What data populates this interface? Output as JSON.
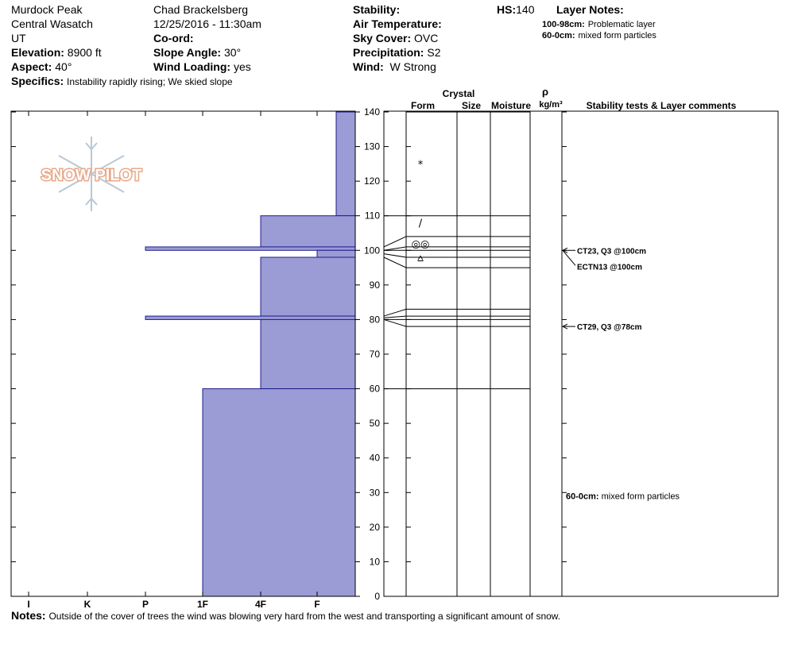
{
  "header": {
    "location": "Murdock Peak",
    "range": "Central Wasatch",
    "state": "UT",
    "elevation_label": "Elevation:",
    "elevation": "8900 ft",
    "aspect_label": "Aspect:",
    "aspect": "40°",
    "specifics_label": "Specifics:",
    "specifics": "Instability rapidly rising;  We skied slope",
    "observer": "Chad Brackelsberg",
    "datetime": "12/25/2016 - 11:30am",
    "coord_label": "Co-ord:",
    "slope_label": "Slope Angle:",
    "slope": "30°",
    "wind_loading_label": "Wind Loading:",
    "wind_loading": "yes",
    "stability_label": "Stability:",
    "air_temp_label": "Air Temperature:",
    "sky_label": "Sky Cover:",
    "sky": "OVC",
    "precip_label": "Precipitation:",
    "precip": "S2",
    "wind_label": "Wind:",
    "wind": "W Strong",
    "hs_label": "HS:",
    "hs": "140",
    "layer_notes_label": "Layer Notes:",
    "layer_notes": [
      {
        "range": "100-98cm:",
        "text": "Problematic layer"
      },
      {
        "range": "60-0cm:",
        "text": "mixed form particles"
      }
    ]
  },
  "columns": {
    "crystal": "Crystal",
    "form": "Form",
    "size": "Size",
    "moisture": "Moisture",
    "rho": "ρ",
    "density_unit": "kg/m³",
    "stability": "Stability tests & Layer comments"
  },
  "logo_text": "SNOW PILOT",
  "notes_label": "Notes:",
  "notes": "Outside of the cover of trees the wind was blowing very hard from the west and transporting a significant amount of snow.",
  "comments": [
    {
      "text": "CT23, Q3 @100cm",
      "depth": 100
    },
    {
      "text": "ECTN13 @100cm",
      "depth": 100
    },
    {
      "text": "CT29, Q3 @78cm",
      "depth": 78
    }
  ],
  "layer_comment": {
    "range": "60-0cm:",
    "text": "mixed form particles",
    "depth": 29
  },
  "chart_data": {
    "type": "bar",
    "x_categories": [
      "I",
      "K",
      "P",
      "1F",
      "4F",
      "F"
    ],
    "y_ticks": [
      0,
      10,
      20,
      30,
      40,
      50,
      60,
      70,
      80,
      90,
      100,
      110,
      120,
      130,
      140
    ],
    "ylim": [
      0,
      140
    ],
    "hardness_layers": [
      {
        "top": 140,
        "bottom": 110,
        "hardness": "F-"
      },
      {
        "top": 110,
        "bottom": 101,
        "hardness": "4F"
      },
      {
        "top": 101,
        "bottom": 100,
        "hardness": "P"
      },
      {
        "top": 100,
        "bottom": 98,
        "hardness": "F+"
      },
      {
        "top": 98,
        "bottom": 81,
        "hardness": "4F"
      },
      {
        "top": 81,
        "bottom": 80,
        "hardness": "P"
      },
      {
        "top": 80,
        "bottom": 60,
        "hardness": "4F"
      },
      {
        "top": 60,
        "bottom": 0,
        "hardness": "1F"
      }
    ],
    "layer_boundaries": [
      140,
      110,
      104,
      101,
      100,
      98,
      95,
      83,
      81,
      80,
      78,
      60,
      0
    ],
    "grain_forms": [
      {
        "depth": 125,
        "symbol": "*"
      },
      {
        "depth": 108,
        "symbol": "/"
      },
      {
        "depth": 102,
        "symbol": "◎◎"
      },
      {
        "depth": 98,
        "symbol": "⩟"
      }
    ]
  }
}
